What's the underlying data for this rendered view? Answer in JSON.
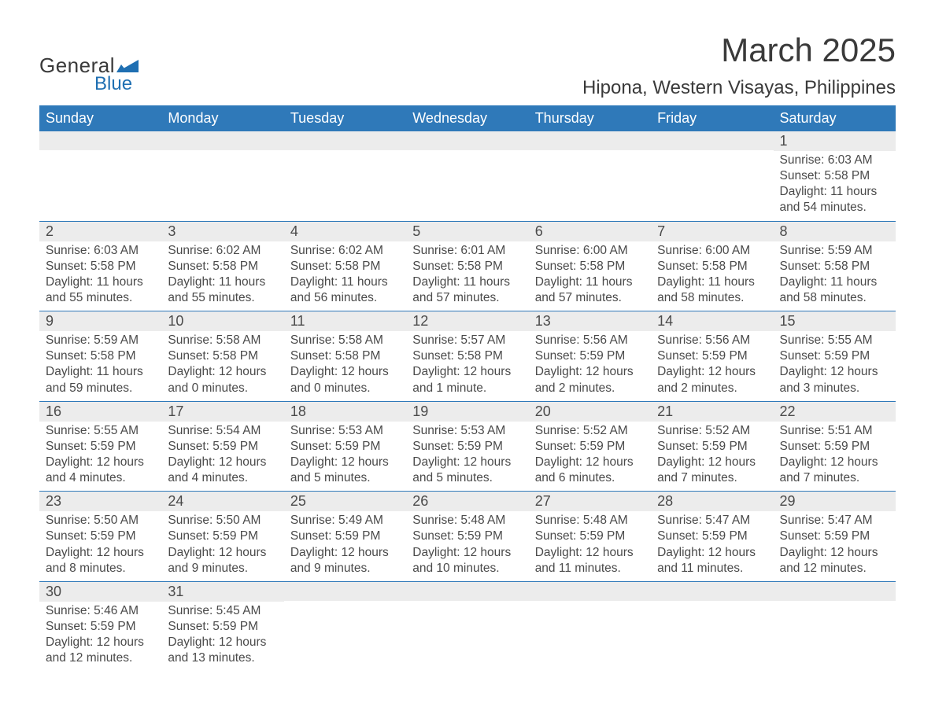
{
  "logo": {
    "text_general": "General",
    "text_blue": "Blue",
    "mark_color": "#1f6fb2"
  },
  "title": "March 2025",
  "location": "Hipona, Western Visayas, Philippines",
  "colors": {
    "header_bg": "#2f79b9",
    "header_fg": "#ffffff",
    "rule": "#2f79b9",
    "daynum_bg": "#ececec",
    "text": "#4a4a4a",
    "page_bg": "#ffffff"
  },
  "typography": {
    "title_fontsize_pt": 32,
    "location_fontsize_pt": 18,
    "dayheader_fontsize_pt": 14,
    "cell_fontsize_pt": 12
  },
  "calendar": {
    "type": "table",
    "columns": [
      "Sunday",
      "Monday",
      "Tuesday",
      "Wednesday",
      "Thursday",
      "Friday",
      "Saturday"
    ],
    "weeks": [
      [
        null,
        null,
        null,
        null,
        null,
        null,
        {
          "n": "1",
          "sunrise": "Sunrise: 6:03 AM",
          "sunset": "Sunset: 5:58 PM",
          "daylight": "Daylight: 11 hours and 54 minutes."
        }
      ],
      [
        {
          "n": "2",
          "sunrise": "Sunrise: 6:03 AM",
          "sunset": "Sunset: 5:58 PM",
          "daylight": "Daylight: 11 hours and 55 minutes."
        },
        {
          "n": "3",
          "sunrise": "Sunrise: 6:02 AM",
          "sunset": "Sunset: 5:58 PM",
          "daylight": "Daylight: 11 hours and 55 minutes."
        },
        {
          "n": "4",
          "sunrise": "Sunrise: 6:02 AM",
          "sunset": "Sunset: 5:58 PM",
          "daylight": "Daylight: 11 hours and 56 minutes."
        },
        {
          "n": "5",
          "sunrise": "Sunrise: 6:01 AM",
          "sunset": "Sunset: 5:58 PM",
          "daylight": "Daylight: 11 hours and 57 minutes."
        },
        {
          "n": "6",
          "sunrise": "Sunrise: 6:00 AM",
          "sunset": "Sunset: 5:58 PM",
          "daylight": "Daylight: 11 hours and 57 minutes."
        },
        {
          "n": "7",
          "sunrise": "Sunrise: 6:00 AM",
          "sunset": "Sunset: 5:58 PM",
          "daylight": "Daylight: 11 hours and 58 minutes."
        },
        {
          "n": "8",
          "sunrise": "Sunrise: 5:59 AM",
          "sunset": "Sunset: 5:58 PM",
          "daylight": "Daylight: 11 hours and 58 minutes."
        }
      ],
      [
        {
          "n": "9",
          "sunrise": "Sunrise: 5:59 AM",
          "sunset": "Sunset: 5:58 PM",
          "daylight": "Daylight: 11 hours and 59 minutes."
        },
        {
          "n": "10",
          "sunrise": "Sunrise: 5:58 AM",
          "sunset": "Sunset: 5:58 PM",
          "daylight": "Daylight: 12 hours and 0 minutes."
        },
        {
          "n": "11",
          "sunrise": "Sunrise: 5:58 AM",
          "sunset": "Sunset: 5:58 PM",
          "daylight": "Daylight: 12 hours and 0 minutes."
        },
        {
          "n": "12",
          "sunrise": "Sunrise: 5:57 AM",
          "sunset": "Sunset: 5:58 PM",
          "daylight": "Daylight: 12 hours and 1 minute."
        },
        {
          "n": "13",
          "sunrise": "Sunrise: 5:56 AM",
          "sunset": "Sunset: 5:59 PM",
          "daylight": "Daylight: 12 hours and 2 minutes."
        },
        {
          "n": "14",
          "sunrise": "Sunrise: 5:56 AM",
          "sunset": "Sunset: 5:59 PM",
          "daylight": "Daylight: 12 hours and 2 minutes."
        },
        {
          "n": "15",
          "sunrise": "Sunrise: 5:55 AM",
          "sunset": "Sunset: 5:59 PM",
          "daylight": "Daylight: 12 hours and 3 minutes."
        }
      ],
      [
        {
          "n": "16",
          "sunrise": "Sunrise: 5:55 AM",
          "sunset": "Sunset: 5:59 PM",
          "daylight": "Daylight: 12 hours and 4 minutes."
        },
        {
          "n": "17",
          "sunrise": "Sunrise: 5:54 AM",
          "sunset": "Sunset: 5:59 PM",
          "daylight": "Daylight: 12 hours and 4 minutes."
        },
        {
          "n": "18",
          "sunrise": "Sunrise: 5:53 AM",
          "sunset": "Sunset: 5:59 PM",
          "daylight": "Daylight: 12 hours and 5 minutes."
        },
        {
          "n": "19",
          "sunrise": "Sunrise: 5:53 AM",
          "sunset": "Sunset: 5:59 PM",
          "daylight": "Daylight: 12 hours and 5 minutes."
        },
        {
          "n": "20",
          "sunrise": "Sunrise: 5:52 AM",
          "sunset": "Sunset: 5:59 PM",
          "daylight": "Daylight: 12 hours and 6 minutes."
        },
        {
          "n": "21",
          "sunrise": "Sunrise: 5:52 AM",
          "sunset": "Sunset: 5:59 PM",
          "daylight": "Daylight: 12 hours and 7 minutes."
        },
        {
          "n": "22",
          "sunrise": "Sunrise: 5:51 AM",
          "sunset": "Sunset: 5:59 PM",
          "daylight": "Daylight: 12 hours and 7 minutes."
        }
      ],
      [
        {
          "n": "23",
          "sunrise": "Sunrise: 5:50 AM",
          "sunset": "Sunset: 5:59 PM",
          "daylight": "Daylight: 12 hours and 8 minutes."
        },
        {
          "n": "24",
          "sunrise": "Sunrise: 5:50 AM",
          "sunset": "Sunset: 5:59 PM",
          "daylight": "Daylight: 12 hours and 9 minutes."
        },
        {
          "n": "25",
          "sunrise": "Sunrise: 5:49 AM",
          "sunset": "Sunset: 5:59 PM",
          "daylight": "Daylight: 12 hours and 9 minutes."
        },
        {
          "n": "26",
          "sunrise": "Sunrise: 5:48 AM",
          "sunset": "Sunset: 5:59 PM",
          "daylight": "Daylight: 12 hours and 10 minutes."
        },
        {
          "n": "27",
          "sunrise": "Sunrise: 5:48 AM",
          "sunset": "Sunset: 5:59 PM",
          "daylight": "Daylight: 12 hours and 11 minutes."
        },
        {
          "n": "28",
          "sunrise": "Sunrise: 5:47 AM",
          "sunset": "Sunset: 5:59 PM",
          "daylight": "Daylight: 12 hours and 11 minutes."
        },
        {
          "n": "29",
          "sunrise": "Sunrise: 5:47 AM",
          "sunset": "Sunset: 5:59 PM",
          "daylight": "Daylight: 12 hours and 12 minutes."
        }
      ],
      [
        {
          "n": "30",
          "sunrise": "Sunrise: 5:46 AM",
          "sunset": "Sunset: 5:59 PM",
          "daylight": "Daylight: 12 hours and 12 minutes."
        },
        {
          "n": "31",
          "sunrise": "Sunrise: 5:45 AM",
          "sunset": "Sunset: 5:59 PM",
          "daylight": "Daylight: 12 hours and 13 minutes."
        },
        null,
        null,
        null,
        null,
        null
      ]
    ]
  }
}
